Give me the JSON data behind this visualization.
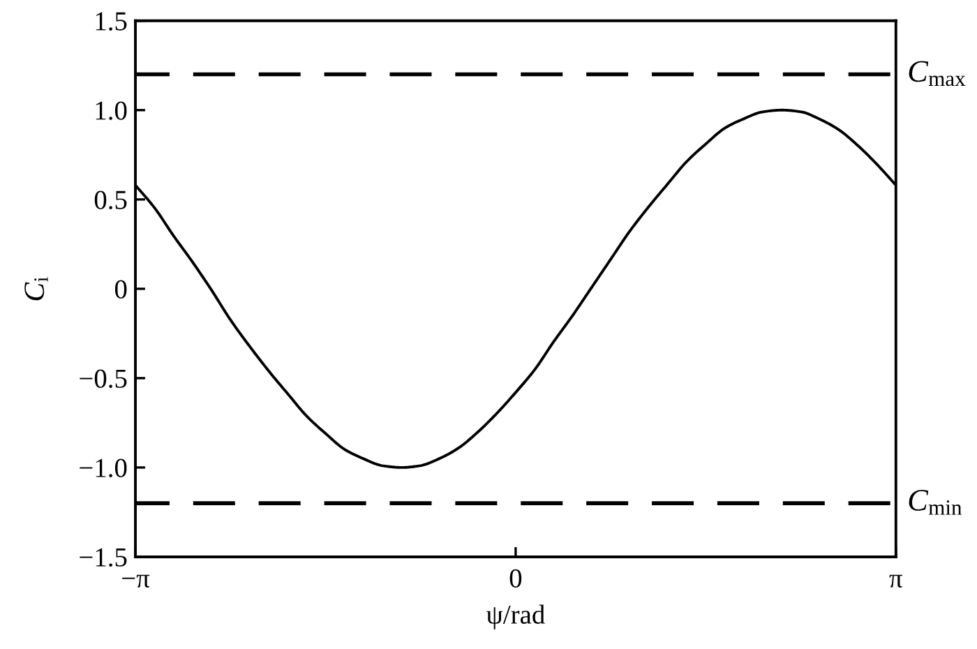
{
  "chart_data": {
    "type": "line",
    "xlabel": "ψ/rad",
    "ylabel": "C$_{i}$",
    "x": [
      -3.1416,
      -2.98,
      -2.83,
      -2.67,
      -2.51,
      -2.36,
      -2.2,
      -2.04,
      -1.88,
      -1.73,
      -1.57,
      -1.41,
      -1.26,
      -1.1,
      -0.94,
      -0.79,
      -0.63,
      -0.47,
      -0.31,
      -0.16,
      0,
      0.16,
      0.31,
      0.47,
      0.63,
      0.79,
      0.94,
      1.1,
      1.26,
      1.41,
      1.57,
      1.73,
      1.88,
      2.04,
      2.2,
      2.36,
      2.51,
      2.67,
      2.83,
      2.98,
      3.1416
    ],
    "series": [
      {
        "color": "#000000",
        "values": [
          0.58,
          0.45,
          0.3,
          0.15,
          -0.01,
          -0.17,
          -0.32,
          -0.46,
          -0.59,
          -0.71,
          -0.81,
          -0.9,
          -0.95,
          -0.99,
          -1.0,
          -0.99,
          -0.95,
          -0.89,
          -0.8,
          -0.7,
          -0.58,
          -0.45,
          -0.3,
          -0.15,
          0.01,
          0.17,
          0.32,
          0.46,
          0.59,
          0.71,
          0.81,
          0.9,
          0.95,
          0.99,
          1.0,
          0.99,
          0.95,
          0.89,
          0.8,
          0.7,
          0.58
        ]
      }
    ],
    "xlim": [
      -3.1416,
      3.1416
    ],
    "ylim": [
      -1.5,
      1.5
    ],
    "xticks": [
      {
        "value": -3.1416,
        "label": "−π"
      },
      {
        "value": 0,
        "label": "0"
      },
      {
        "value": 3.1416,
        "label": "π"
      }
    ],
    "yticks": [
      {
        "value": -1.5,
        "label": "−1.5"
      },
      {
        "value": -1.0,
        "label": "−1.0"
      },
      {
        "value": -0.5,
        "label": "−0.5"
      },
      {
        "value": 0,
        "label": "0"
      },
      {
        "value": 0.5,
        "label": "0.5"
      },
      {
        "value": 1.0,
        "label": "1.0"
      },
      {
        "value": 1.5,
        "label": "1.5"
      }
    ],
    "ref_lines": [
      {
        "axis": "y",
        "value": 1.2,
        "label": "C$_{max}$",
        "color": "#000000",
        "line_style": "dashed"
      },
      {
        "axis": "y",
        "value": -1.2,
        "label": "C$_{min}$",
        "color": "#000000",
        "line_style": "dashed"
      }
    ],
    "marker": "none",
    "line_style": "solid"
  }
}
